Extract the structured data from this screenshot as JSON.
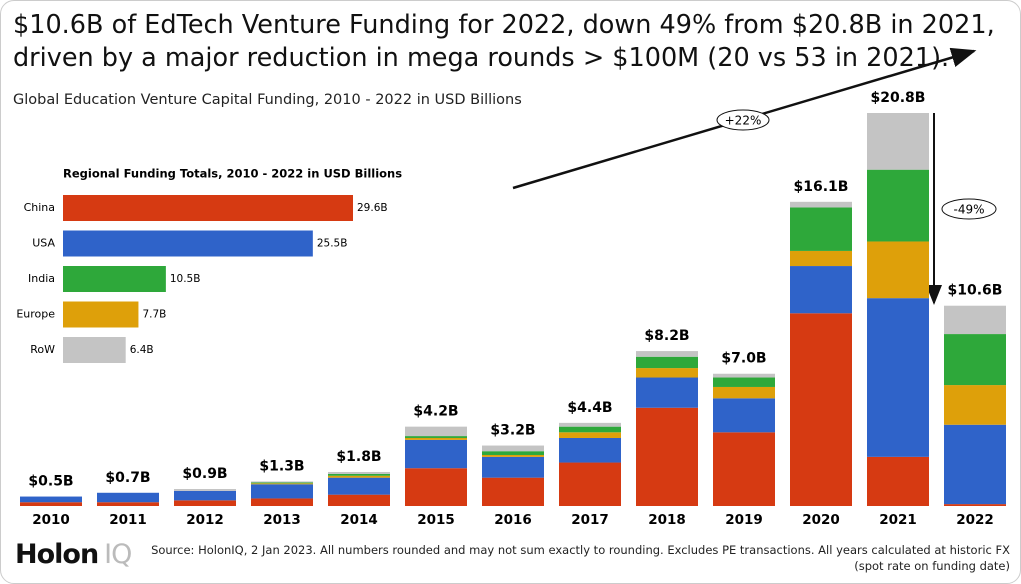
{
  "chart_data": [
    {
      "type": "stacked-bar",
      "title": "$10.6B of EdTech Venture Funding for 2022, down 49% from $20.8B in 2021, driven by a major reduction in mega rounds > $100M (20 vs 53 in 2021).",
      "subtitle": "Global Education Venture Capital Funding, 2010 - 2022 in USD Billions",
      "categories": [
        "2010",
        "2011",
        "2012",
        "2013",
        "2014",
        "2015",
        "2016",
        "2017",
        "2018",
        "2019",
        "2020",
        "2021",
        "2022"
      ],
      "series": [
        {
          "color": "#d63a12",
          "values": [
            0.2,
            0.2,
            0.3,
            0.4,
            0.6,
            2.0,
            1.5,
            2.3,
            5.2,
            3.9,
            10.2,
            2.6,
            0.1
          ]
        },
        {
          "color": "#2f63c9",
          "values": [
            0.3,
            0.5,
            0.5,
            0.75,
            0.9,
            1.5,
            1.1,
            1.3,
            1.6,
            1.8,
            2.5,
            8.4,
            4.2
          ]
        },
        {
          "color": "#dea00a",
          "values": [
            0,
            0,
            0,
            0.05,
            0.1,
            0.1,
            0.1,
            0.3,
            0.5,
            0.6,
            0.8,
            3.0,
            2.1
          ]
        },
        {
          "color": "#2ea83a",
          "values": [
            0,
            0,
            0,
            0.05,
            0.1,
            0.1,
            0.2,
            0.3,
            0.6,
            0.5,
            2.3,
            3.8,
            2.7
          ]
        },
        {
          "color": "#c4c4c4",
          "values": [
            0,
            0,
            0.1,
            0.05,
            0.1,
            0.5,
            0.3,
            0.2,
            0.3,
            0.2,
            0.3,
            3.0,
            1.5
          ]
        }
      ],
      "totals": {
        "values": [
          0.5,
          0.7,
          0.9,
          1.3,
          1.8,
          4.2,
          3.2,
          4.4,
          8.2,
          7.0,
          16.1,
          20.8,
          10.6
        ],
        "value_labels": [
          "$0.5B",
          "$0.7B",
          "$0.9B",
          "$1.3B",
          "$1.8B",
          "$4.2B",
          "$3.2B",
          "$4.4B",
          "$8.2B",
          "$7.0B",
          "$16.1B",
          "$20.8B",
          "$10.6B"
        ]
      },
      "annotations": [
        "+22%",
        "-49%"
      ]
    },
    {
      "type": "hbar",
      "title": "Regional Funding Totals, 2010 - 2022 in USD Billions",
      "categories": [
        "China",
        "USA",
        "India",
        "Europe",
        "RoW"
      ],
      "values": [
        29.6,
        25.5,
        10.5,
        7.7,
        6.4
      ],
      "value_labels": [
        "29.6B",
        "25.5B",
        "10.5B",
        "7.7B",
        "6.4B"
      ],
      "colors": [
        "#d63a12",
        "#2f63c9",
        "#2ea83a",
        "#dea00a",
        "#c4c4c4"
      ]
    }
  ],
  "source": "Source: HolonIQ, 2 Jan 2023. All numbers rounded and may not sum exactly to rounding. Excludes PE transactions. All years calculated at historic FX (spot rate on funding date)",
  "logo": [
    "Holon",
    "IQ"
  ]
}
